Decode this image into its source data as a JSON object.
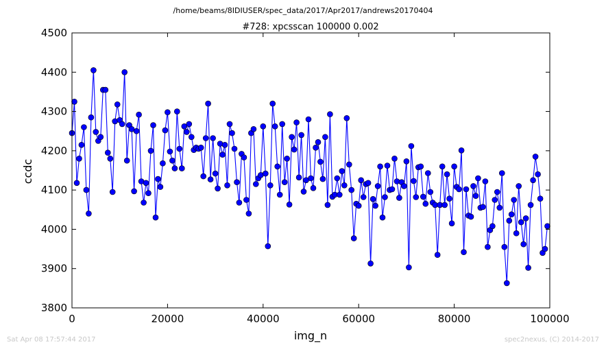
{
  "chart_data": {
    "type": "line",
    "suptitle": "/home/beams/8IDIUSER/spec_data/2017/Apr2017/andrews20170404",
    "title": "#728: xpcsscan 100000 0.002",
    "xlabel": "img_n",
    "ylabel": "ccdc",
    "xlim": [
      0,
      100000
    ],
    "ylim": [
      3800,
      4500
    ],
    "xticks": [
      0,
      20000,
      40000,
      60000,
      80000,
      100000
    ],
    "xtick_labels": [
      "0",
      "20000",
      "40000",
      "60000",
      "80000",
      "100000"
    ],
    "yticks": [
      3800,
      3900,
      4000,
      4100,
      4200,
      4300,
      4400,
      4500
    ],
    "ytick_labels": [
      "3800",
      "3900",
      "4000",
      "4100",
      "4200",
      "4300",
      "4400",
      "4500"
    ],
    "grid": false,
    "line_color": "#0000ff",
    "marker": "circle",
    "x_step": 500,
    "series": [
      {
        "values": [
          4245,
          4325,
          4118,
          4180,
          4215,
          4260,
          4100,
          4040,
          4285,
          4405,
          4248,
          4225,
          4235,
          4355,
          4355,
          4195,
          4180,
          4095,
          4275,
          4318,
          4278,
          4268,
          4400,
          4175,
          4265,
          4255,
          4097,
          4250,
          4292,
          4122,
          4068,
          4118,
          4092,
          4200,
          4265,
          4030,
          4128,
          4108,
          4168,
          4252,
          4298,
          4198,
          4175,
          4155,
          4300,
          4205,
          4155,
          4262,
          4248,
          4268,
          4235,
          4202,
          4208,
          4205,
          4208,
          4135,
          4232,
          4320,
          4127,
          4232,
          4142,
          4104,
          4218,
          4190,
          4215,
          4112,
          4268,
          4245,
          4205,
          4120,
          4068,
          4192,
          4183,
          4075,
          4040,
          4245,
          4255,
          4115,
          4130,
          4138,
          4262,
          4142,
          3957,
          4112,
          4320,
          4262,
          4160,
          4088,
          4268,
          4120,
          4180,
          4063,
          4235,
          4203,
          4272,
          4132,
          4240,
          4096,
          4125,
          4280,
          4130,
          4105,
          4208,
          4222,
          4172,
          4128,
          4235,
          4062,
          4293,
          4083,
          4088,
          4130,
          4088,
          4148,
          4112,
          4283,
          4165,
          4100,
          3977,
          4065,
          4060,
          4125,
          4082,
          4115,
          4118,
          3913,
          4077,
          4060,
          4110,
          4160,
          4030,
          4082,
          4162,
          4100,
          4102,
          4180,
          4122,
          4080,
          4120,
          4110,
          4173,
          3903,
          4212,
          4123,
          4082,
          4158,
          4160,
          4083,
          4065,
          4143,
          4095,
          4068,
          4062,
          3935,
          4062,
          4160,
          4062,
          4140,
          4078,
          4015,
          4160,
          4108,
          4102,
          4201,
          3942,
          4102,
          4035,
          4032,
          4110,
          4085,
          4130,
          4055,
          4057,
          4122,
          3955,
          3998,
          4008,
          4075,
          4095,
          4055,
          4143,
          3955,
          3863,
          4022,
          4038,
          4075,
          3990,
          4110,
          4018,
          3962,
          4028,
          3902,
          4062,
          4125,
          4185,
          4140,
          4078,
          3940,
          3950,
          4008
        ]
      }
    ]
  },
  "footer": {
    "left": "Sat Apr 08 17:57:44 2017",
    "right": "spec2nexus, (C) 2014-2017"
  }
}
